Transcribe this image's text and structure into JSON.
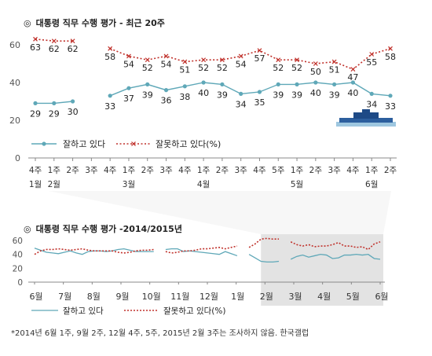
{
  "main_title": "대통령 직무 수행 평가 - 최근 20주",
  "sub_title": "대통령 직무 수행 평가 -2014/2015년",
  "title_mark": "◎",
  "footnote": "*2014년 6월 1주, 9월 2주, 12월 4주, 5주, 2015년 2월 3주는 조사하지 않음. 한국갤럽",
  "colors": {
    "approve": "#5fa8b8",
    "disapprove": "#c0312b",
    "axis": "#888888",
    "shade": "#e3e3e3"
  },
  "chart_data": [
    {
      "type": "line",
      "title": "대통령 직무 수행 평가 - 최근 20주",
      "week_labels": [
        "4주",
        "1주",
        "2주",
        "3주",
        "4주",
        "1주",
        "2주",
        "3주",
        "4주",
        "1주",
        "2주",
        "3주",
        "4주",
        "5주",
        "1주",
        "2주",
        "3주",
        "4주",
        "1주",
        "2주"
      ],
      "month_labels": [
        {
          "index": 0,
          "label": "1월"
        },
        {
          "index": 1,
          "label": "2월"
        },
        {
          "index": 5,
          "label": "3월"
        },
        {
          "index": 9,
          "label": "4월"
        },
        {
          "index": 14,
          "label": "5월"
        },
        {
          "index": 18,
          "label": "6월"
        }
      ],
      "ylim": [
        0,
        60
      ],
      "yticks": [
        0,
        20,
        40,
        60
      ],
      "grid": false,
      "series": [
        {
          "name": "잘하고 있다",
          "values": [
            29,
            29,
            30,
            null,
            33,
            37,
            39,
            36,
            38,
            40,
            39,
            34,
            35,
            39,
            39,
            40,
            39,
            40,
            34,
            33
          ]
        },
        {
          "name": "잘못하고 있다(%)",
          "values": [
            63,
            62,
            62,
            null,
            58,
            54,
            52,
            54,
            51,
            52,
            52,
            54,
            57,
            52,
            52,
            50,
            51,
            47,
            55,
            58
          ]
        }
      ],
      "legend": "bottom-left",
      "legend_labels": [
        "잘하고 있다",
        "잘못하고 있다(%)"
      ],
      "annotation_icon": "blue-house-icon"
    },
    {
      "type": "line",
      "title": "대통령 직무 수행 평가 -2014/2015년",
      "month_labels": [
        "6월",
        "7월",
        "8월",
        "9월",
        "10월",
        "11월",
        "12월",
        "1월",
        "2월",
        "3월",
        "4월",
        "5월",
        "6월"
      ],
      "ylim": [
        0,
        60
      ],
      "yticks": [
        0,
        20,
        40,
        60
      ],
      "highlight": "최근 20주",
      "series": [
        {
          "name": "잘하고 있다",
          "values": [
            49,
            46,
            43,
            42,
            41,
            43,
            45,
            42,
            40,
            44,
            45,
            45,
            44,
            45,
            47,
            48,
            46,
            44,
            44,
            44,
            44,
            null,
            47,
            48,
            48,
            44,
            45,
            44,
            43,
            42,
            41,
            40,
            44,
            41,
            38,
            null,
            40,
            35,
            30,
            29,
            29,
            30,
            null,
            33,
            37,
            39,
            36,
            38,
            40,
            39,
            34,
            35,
            39,
            39,
            40,
            39,
            40,
            34,
            33
          ]
        },
        {
          "name": "잘못하고 있다(%)",
          "values": [
            40,
            45,
            47,
            47,
            48,
            47,
            46,
            47,
            48,
            46,
            45,
            45,
            45,
            45,
            43,
            42,
            43,
            45,
            46,
            46,
            47,
            null,
            44,
            42,
            43,
            45,
            45,
            46,
            48,
            48,
            49,
            50,
            48,
            50,
            52,
            null,
            50,
            55,
            62,
            63,
            62,
            62,
            null,
            58,
            54,
            52,
            54,
            51,
            52,
            52,
            54,
            57,
            52,
            52,
            50,
            51,
            47,
            55,
            58
          ]
        }
      ],
      "legend": "bottom",
      "legend_labels": [
        "잘하고 있다",
        "잘못하고 있다(%)"
      ]
    }
  ]
}
